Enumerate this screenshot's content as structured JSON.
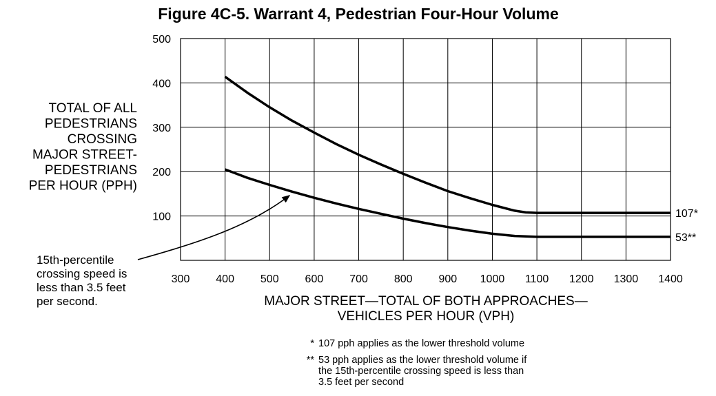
{
  "chart_data": {
    "type": "line",
    "title": "Figure 4C-5.  Warrant 4, Pedestrian Four-Hour Volume",
    "xlabel": [
      "MAJOR STREET—TOTAL OF BOTH APPROACHES—",
      "VEHICLES PER HOUR (VPH)"
    ],
    "ylabel": [
      "TOTAL OF ALL",
      "PEDESTRIANS",
      "CROSSING",
      "MAJOR STREET-",
      "PEDESTRIANS",
      "PER HOUR (PPH)"
    ],
    "xlim": [
      300,
      1400
    ],
    "ylim": [
      0,
      500
    ],
    "x_ticks": [
      300,
      400,
      500,
      600,
      700,
      800,
      900,
      1000,
      1100,
      1200,
      1300,
      1400
    ],
    "y_ticks": [
      100,
      200,
      300,
      400,
      500
    ],
    "grid": true,
    "series": [
      {
        "end_label": "107*",
        "x": [
          400,
          450,
          500,
          550,
          600,
          650,
          700,
          750,
          800,
          850,
          900,
          950,
          1000,
          1050,
          1075,
          1100,
          1150,
          1200,
          1250,
          1300,
          1350,
          1400
        ],
        "y": [
          414,
          378,
          345,
          315,
          288,
          262,
          238,
          216,
          195,
          175,
          156,
          140,
          125,
          112,
          108,
          107,
          107,
          107,
          107,
          107,
          107,
          107
        ]
      },
      {
        "end_label": "53**",
        "x": [
          400,
          450,
          500,
          550,
          600,
          650,
          700,
          750,
          800,
          850,
          900,
          950,
          1000,
          1050,
          1075,
          1100,
          1150,
          1200,
          1250,
          1300,
          1350,
          1400
        ],
        "y": [
          205,
          186,
          170,
          155,
          141,
          128,
          116,
          105,
          94,
          84,
          75,
          67,
          60,
          55,
          54,
          53,
          53,
          53,
          53,
          53,
          53,
          53
        ]
      }
    ],
    "annotation": {
      "text": [
        "15th-percentile",
        "crossing speed is",
        "less than 3.5 feet",
        "per second."
      ],
      "points_to": {
        "x": 550,
        "y": 155
      }
    },
    "footnotes": [
      {
        "marker": "*",
        "lines": [
          "107 pph applies as the lower threshold volume"
        ]
      },
      {
        "marker": "**",
        "lines": [
          "53 pph applies as the lower threshold volume if",
          "the 15th-percentile crossing speed is less than",
          "3.5 feet per second"
        ]
      }
    ]
  }
}
